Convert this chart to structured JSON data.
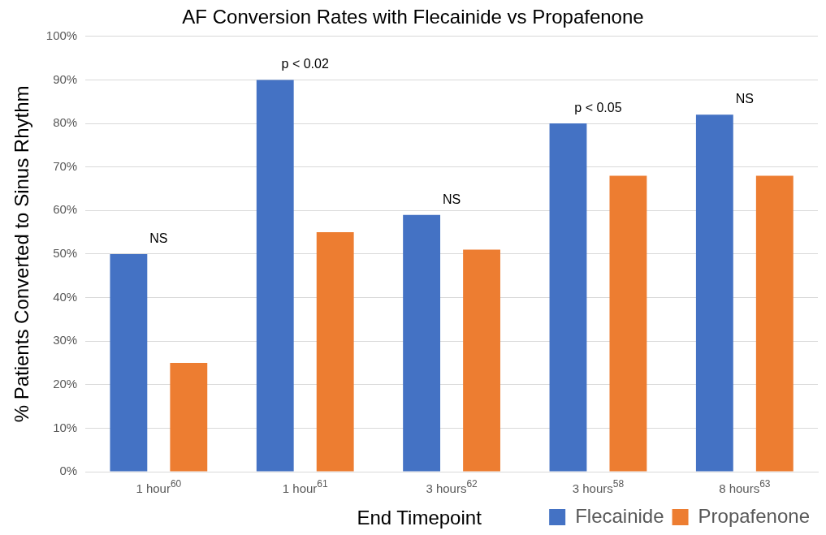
{
  "chart_data": {
    "type": "bar",
    "title": "AF Conversion Rates with Flecainide vs Propafenone",
    "xlabel": "End Timepoint",
    "ylabel": "% Patients Converted to Sinus Rhythm",
    "categories": [
      "1 hour$^{60}$",
      "1 hour$^{61}$",
      "3 hours$^{62}$",
      "3 hours$^{58}$",
      "8 hours$^{63}$"
    ],
    "series": [
      {
        "name": "Flecainide",
        "color": "#4472c4",
        "values": [
          50,
          90,
          59,
          80,
          82
        ]
      },
      {
        "name": "Propafenone",
        "color": "#ed7d31",
        "values": [
          25,
          55,
          51,
          68,
          68
        ]
      }
    ],
    "ylim": [
      0,
      100
    ],
    "yticks": [
      {
        "value": 0,
        "label": "0%"
      },
      {
        "value": 10,
        "label": "10%"
      },
      {
        "value": 20,
        "label": "20%"
      },
      {
        "value": 30,
        "label": "30%"
      },
      {
        "value": 40,
        "label": "40%"
      },
      {
        "value": 50,
        "label": "50%"
      },
      {
        "value": 60,
        "label": "60%"
      },
      {
        "value": 70,
        "label": "70%"
      },
      {
        "value": 80,
        "label": "80%"
      },
      {
        "value": 90,
        "label": "90%"
      },
      {
        "value": 100,
        "label": "100%"
      }
    ],
    "grid": "y",
    "legend": "bottom right",
    "annotations": [
      "NS",
      "p < 0.02",
      "NS",
      "p < 0.05",
      "NS"
    ]
  }
}
